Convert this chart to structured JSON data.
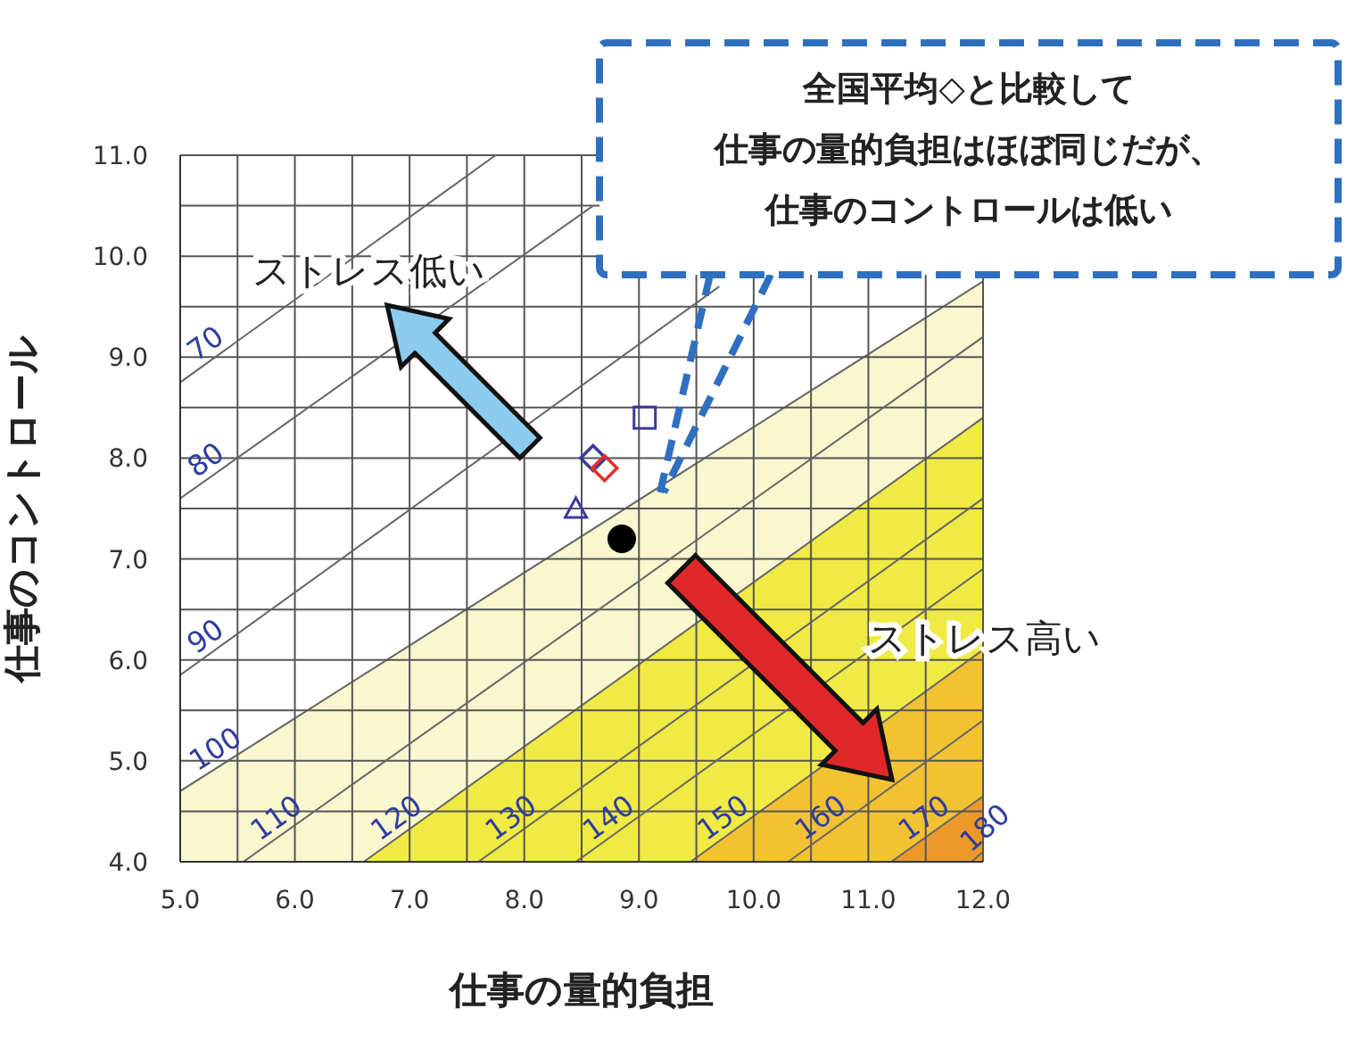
{
  "chart_data": {
    "type": "scatter",
    "xlabel": "仕事の量的負担",
    "ylabel": "仕事のコントロール",
    "xlim": [
      5,
      12
    ],
    "ylim": [
      4,
      11
    ],
    "xticks": [
      {
        "value": 5,
        "label": "5.0"
      },
      {
        "value": 5.5,
        "label": null
      },
      {
        "value": 6,
        "label": "6.0"
      },
      {
        "value": 6.5,
        "label": null
      },
      {
        "value": 7,
        "label": "7.0"
      },
      {
        "value": 7.5,
        "label": null
      },
      {
        "value": 8,
        "label": "8.0"
      },
      {
        "value": 8.5,
        "label": null
      },
      {
        "value": 9,
        "label": "9.0"
      },
      {
        "value": 9.5,
        "label": null
      },
      {
        "value": 10,
        "label": "10.0"
      },
      {
        "value": 10.5,
        "label": null
      },
      {
        "value": 11,
        "label": "11.0"
      },
      {
        "value": 11.5,
        "label": null
      },
      {
        "value": 12,
        "label": "12.0"
      }
    ],
    "yticks": [
      {
        "value": 4,
        "label": "4.0"
      },
      {
        "value": 4.5,
        "label": null
      },
      {
        "value": 5,
        "label": "5.0"
      },
      {
        "value": 5.5,
        "label": null
      },
      {
        "value": 6,
        "label": "6.0"
      },
      {
        "value": 6.5,
        "label": null
      },
      {
        "value": 7,
        "label": "7.0"
      },
      {
        "value": 7.5,
        "label": null
      },
      {
        "value": 8,
        "label": "8.0"
      },
      {
        "value": 8.5,
        "label": null
      },
      {
        "value": 9,
        "label": "9.0"
      },
      {
        "value": 9.5,
        "label": null
      },
      {
        "value": 10,
        "label": "10.0"
      },
      {
        "value": 10.5,
        "label": null
      },
      {
        "value": 11,
        "label": "11.0"
      }
    ],
    "grid": true,
    "legend": false,
    "series": [
      {
        "name": "100",
        "type": "area",
        "color": "#f8f7cf",
        "x": [
          5,
          12
        ],
        "values": [
          4.7,
          9.75
        ]
      },
      {
        "name": "120",
        "type": "area",
        "color": "#f0ea45",
        "x": [
          6.6,
          12
        ],
        "values": [
          4,
          8.4
        ]
      },
      {
        "name": "150",
        "type": "area",
        "color": "#f3c232",
        "x": [
          9.45,
          12
        ],
        "values": [
          4,
          6.1
        ]
      },
      {
        "name": "170",
        "type": "area",
        "color": "#eb9a2a",
        "x": [
          11.2,
          12
        ],
        "values": [
          4,
          4.65
        ]
      },
      {
        "name": "70",
        "type": "line",
        "color": "#666666",
        "x": [
          5,
          7.75
        ],
        "values": [
          8.75,
          11
        ]
      },
      {
        "name": "80",
        "type": "line",
        "color": "#666666",
        "x": [
          5,
          8.6
        ],
        "values": [
          7.6,
          10.5
        ]
      },
      {
        "name": "90",
        "type": "line",
        "color": "#666666",
        "x": [
          5,
          9.7
        ],
        "values": [
          5.85,
          9.7
        ]
      },
      {
        "name": "110",
        "type": "line",
        "color": "#666666",
        "x": [
          5.55,
          12
        ],
        "values": [
          4,
          9.2
        ]
      },
      {
        "name": "130",
        "type": "line",
        "color": "#666666",
        "x": [
          7.6,
          12
        ],
        "values": [
          4,
          7.6
        ]
      },
      {
        "name": "140",
        "type": "line",
        "color": "#666666",
        "x": [
          8.45,
          12
        ],
        "values": [
          4,
          6.9
        ]
      },
      {
        "name": "160",
        "type": "line",
        "color": "#666666",
        "x": [
          10.3,
          12
        ],
        "values": [
          4,
          5.4
        ]
      },
      {
        "name": "180",
        "type": "line",
        "color": "#666666",
        "x": [
          11.9,
          12
        ],
        "values": [
          4,
          4.1
        ]
      },
      {
        "marker": "square",
        "color": "#3a3aa0",
        "x": [
          9.05
        ],
        "values": [
          8.4
        ]
      },
      {
        "marker": "diamond",
        "color": "#3a3aa0",
        "x": [
          8.6
        ],
        "values": [
          8.0
        ]
      },
      {
        "marker": "diamond",
        "color": "#e0302a",
        "x": [
          8.7
        ],
        "values": [
          7.9
        ]
      },
      {
        "marker": "triangle",
        "color": "#3a3aa0",
        "x": [
          8.45
        ],
        "values": [
          7.5
        ]
      },
      {
        "marker": "circle",
        "color": "#000000",
        "x": [
          8.85
        ],
        "values": [
          7.2
        ]
      }
    ],
    "annotations": [
      "全国平均◇と比較して",
      "仕事の量的負担はほぼ同じだが、",
      "仕事のコントロールは低い",
      "ストレス低い",
      "ストレス高い"
    ]
  }
}
